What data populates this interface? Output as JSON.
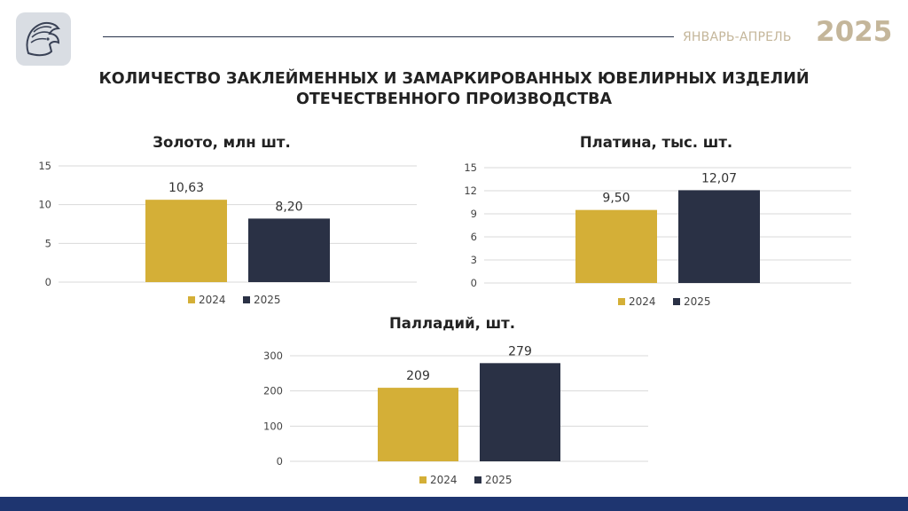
{
  "header": {
    "period": "ЯНВАРЬ-АПРЕЛЬ",
    "year": "2025",
    "logo": "assay-office-emblem-icon"
  },
  "main_title": {
    "line1": "КОЛИЧЕСТВО ЗАКЛЕЙМЕННЫХ И ЗАМАРКИРОВАННЫХ ЮВЕЛИРНЫХ ИЗДЕЛИЙ",
    "line2": "ОТЕЧЕСТВЕННОГО ПРОИЗВОДСТВА"
  },
  "colors": {
    "series_2024": "#d4af37",
    "series_2025": "#2a3145",
    "grid": "#d9d9d9",
    "accent": "#c4b69a",
    "footer": "#1e3570"
  },
  "chart_data": [
    {
      "type": "bar",
      "title": "Золото, млн шт.",
      "series": [
        {
          "name": "2024",
          "values": [
            10.63
          ],
          "labels": [
            "10,63"
          ]
        },
        {
          "name": "2025",
          "values": [
            8.2
          ],
          "labels": [
            "8,20"
          ]
        }
      ],
      "ylim": [
        0,
        15
      ],
      "yticks": [
        0,
        5,
        10,
        15
      ],
      "grid": true,
      "legend": "bottom"
    },
    {
      "type": "bar",
      "title": "Платина, тыс. шт.",
      "series": [
        {
          "name": "2024",
          "values": [
            9.5
          ],
          "labels": [
            "9,50"
          ]
        },
        {
          "name": "2025",
          "values": [
            12.07
          ],
          "labels": [
            "12,07"
          ]
        }
      ],
      "ylim": [
        0,
        15
      ],
      "yticks": [
        0,
        3,
        6,
        9,
        12,
        15
      ],
      "grid": true,
      "legend": "bottom"
    },
    {
      "type": "bar",
      "title": "Палладий, шт.",
      "series": [
        {
          "name": "2024",
          "values": [
            209
          ],
          "labels": [
            "209"
          ]
        },
        {
          "name": "2025",
          "values": [
            279
          ],
          "labels": [
            "279"
          ]
        }
      ],
      "ylim": [
        0,
        300
      ],
      "yticks": [
        0,
        100,
        200,
        300
      ],
      "grid": true,
      "legend": "bottom"
    }
  ]
}
